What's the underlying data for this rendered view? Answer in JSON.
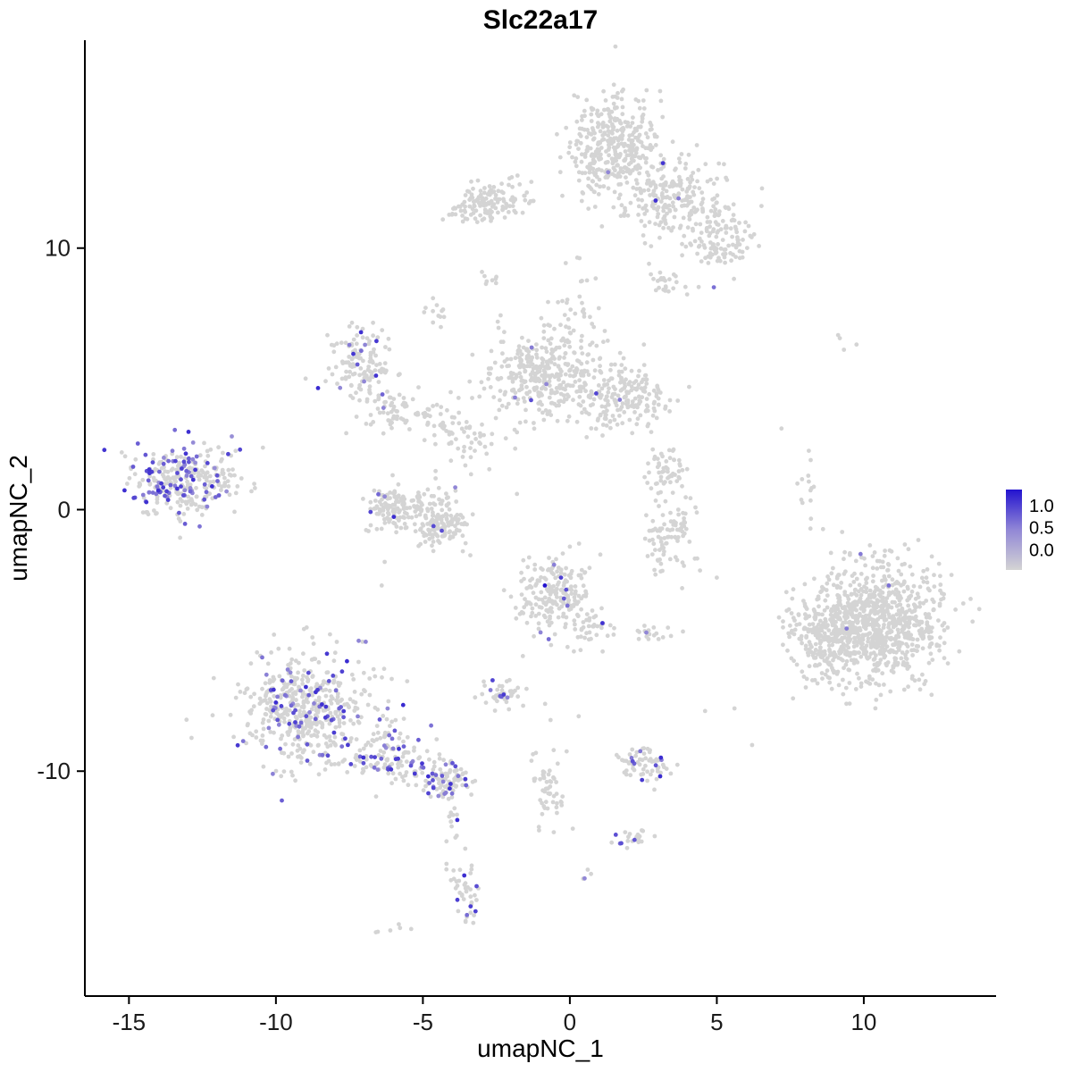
{
  "title": "Slc22a17",
  "axes": {
    "x_label": "umapNC_1",
    "y_label": "umapNC_2",
    "x_ticks": [
      -15,
      -10,
      -5,
      0,
      5,
      10
    ],
    "y_ticks": [
      -10,
      0,
      10
    ]
  },
  "legend": {
    "labels": [
      "1.0",
      "0.5",
      "0.0"
    ],
    "low_color": "#d4d4d4",
    "mid_color": "#9187d6",
    "high_color": "#2313cf"
  },
  "chart_data": {
    "type": "scatter",
    "title": "Slc22a17",
    "xlabel": "umapNC_1",
    "ylabel": "umapNC_2",
    "xlim": [
      -16.5,
      14.5
    ],
    "ylim": [
      -18.6,
      17.95
    ],
    "grid": false,
    "legend_position": "right",
    "color_scale": {
      "low": "#d4d4d4",
      "mid": "#9187d6",
      "high": "#2313cf",
      "domain": [
        0.0,
        0.5,
        1.0
      ]
    },
    "point_radius": 2.4,
    "seed": 42,
    "clusters": [
      {
        "cx": 1.5,
        "cy": 13.8,
        "sx": 0.8,
        "sy": 1.0,
        "n": 380,
        "frac": 0.004
      },
      {
        "cx": 3.6,
        "cy": 11.9,
        "sx": 0.85,
        "sy": 0.8,
        "n": 220,
        "frac": 0.008
      },
      {
        "cx": 5.2,
        "cy": 10.3,
        "sx": 0.6,
        "sy": 0.65,
        "n": 110,
        "frac": 0.01
      },
      {
        "cx": 3.3,
        "cy": 8.8,
        "sx": 0.35,
        "sy": 0.3,
        "n": 25,
        "frac": 0
      },
      {
        "cx": -2.6,
        "cy": 11.8,
        "sx": 0.55,
        "sy": 0.4,
        "n": 120,
        "frac": 0
      },
      {
        "cx": -3.7,
        "cy": 11.4,
        "sx": 0.3,
        "sy": 0.25,
        "n": 22,
        "frac": 0
      },
      {
        "cx": -2.9,
        "cy": 8.6,
        "sx": 0.18,
        "sy": 0.22,
        "n": 7,
        "frac": 0
      },
      {
        "cx": -4.6,
        "cy": 7.5,
        "sx": 0.25,
        "sy": 0.3,
        "n": 12,
        "frac": 0
      },
      {
        "cx": -7.3,
        "cy": 5.5,
        "sx": 0.55,
        "sy": 0.75,
        "n": 130,
        "frac": 0.05
      },
      {
        "cx": -6.2,
        "cy": 3.9,
        "sx": 0.55,
        "sy": 0.5,
        "n": 50,
        "frac": 0.03
      },
      {
        "cx": -4.7,
        "cy": 3.4,
        "sx": 0.6,
        "sy": 0.5,
        "n": 40,
        "frac": 0
      },
      {
        "cx": -3.4,
        "cy": 2.4,
        "sx": 0.65,
        "sy": 0.55,
        "n": 45,
        "frac": 0
      },
      {
        "cx": -0.7,
        "cy": 5.2,
        "sx": 0.95,
        "sy": 0.85,
        "n": 380,
        "frac": 0.005
      },
      {
        "cx": 1.9,
        "cy": 4.2,
        "sx": 0.8,
        "sy": 0.55,
        "n": 180,
        "frac": 0.006
      },
      {
        "cx": 0.4,
        "cy": 7.8,
        "sx": 0.45,
        "sy": 0.9,
        "n": 26,
        "frac": 0
      },
      {
        "cx": -13.4,
        "cy": 1.0,
        "sx": 0.75,
        "sy": 0.65,
        "n": 270,
        "frac": 0.32
      },
      {
        "cx": -12.0,
        "cy": 1.4,
        "sx": 0.6,
        "sy": 0.6,
        "n": 55,
        "frac": 0.06
      },
      {
        "cx": -5.9,
        "cy": 0.1,
        "sx": 0.5,
        "sy": 0.45,
        "n": 130,
        "frac": 0.02
      },
      {
        "cx": -4.5,
        "cy": -0.5,
        "sx": 0.55,
        "sy": 0.5,
        "n": 150,
        "frac": 0.015
      },
      {
        "cx": 3.3,
        "cy": 1.5,
        "sx": 0.35,
        "sy": 0.5,
        "n": 55,
        "frac": 0
      },
      {
        "cx": 3.4,
        "cy": -0.9,
        "sx": 0.45,
        "sy": 0.7,
        "n": 90,
        "frac": 0
      },
      {
        "cx": -0.6,
        "cy": -3.2,
        "sx": 0.65,
        "sy": 0.8,
        "n": 200,
        "frac": 0.05
      },
      {
        "cx": 0.9,
        "cy": -4.5,
        "sx": 0.5,
        "sy": 0.4,
        "n": 40,
        "frac": 0.02
      },
      {
        "cx": 2.9,
        "cy": -4.7,
        "sx": 0.35,
        "sy": 0.18,
        "n": 16,
        "frac": 0.07
      },
      {
        "cx": -8.8,
        "cy": -7.7,
        "sx": 1.15,
        "sy": 1.1,
        "n": 520,
        "frac": 0.13
      },
      {
        "cx": -6.0,
        "cy": -9.5,
        "sx": 0.7,
        "sy": 0.5,
        "n": 130,
        "frac": 0.18
      },
      {
        "cx": -4.2,
        "cy": -10.3,
        "sx": 0.45,
        "sy": 0.4,
        "n": 90,
        "frac": 0.3
      },
      {
        "cx": -3.9,
        "cy": -11.8,
        "sx": 0.22,
        "sy": 0.5,
        "n": 14,
        "frac": 0.05
      },
      {
        "cx": -2.3,
        "cy": -7.0,
        "sx": 0.4,
        "sy": 0.25,
        "n": 45,
        "frac": 0.1
      },
      {
        "cx": -0.8,
        "cy": -10.4,
        "sx": 0.25,
        "sy": 0.85,
        "n": 55,
        "frac": 0
      },
      {
        "cx": 10.4,
        "cy": -4.3,
        "sx": 1.2,
        "sy": 1.1,
        "n": 900,
        "frac": 0.0012
      },
      {
        "cx": 8.6,
        "cy": -4.9,
        "sx": 0.6,
        "sy": 0.85,
        "n": 160,
        "frac": 0
      },
      {
        "cx": 2.5,
        "cy": -9.7,
        "sx": 0.5,
        "sy": 0.3,
        "n": 65,
        "frac": 0.09
      },
      {
        "cx": 2.2,
        "cy": -12.5,
        "sx": 0.3,
        "sy": 0.2,
        "n": 22,
        "frac": 0.14
      },
      {
        "cx": -3.6,
        "cy": -14.5,
        "sx": 0.25,
        "sy": 0.75,
        "n": 45,
        "frac": 0.1
      },
      {
        "cx": -6.1,
        "cy": -16.1,
        "sx": 0.22,
        "sy": 0.15,
        "n": 6,
        "frac": 0
      },
      {
        "cx": 0.5,
        "cy": -14.0,
        "sx": 0.15,
        "sy": 0.15,
        "n": 3,
        "frac": 0
      },
      {
        "cx": 8.1,
        "cy": 0.6,
        "sx": 0.15,
        "sy": 1.0,
        "n": 14,
        "frac": 0
      },
      {
        "cx": 9.4,
        "cy": 6.6,
        "sx": 0.25,
        "sy": 0.18,
        "n": 4,
        "frac": 0
      }
    ],
    "singles": [
      [
        -2.5,
        8.9
      ],
      [
        7.2,
        3.1
      ],
      [
        5.6,
        -7.6
      ],
      [
        4.6,
        -7.7
      ],
      [
        0.3,
        -7.9
      ],
      [
        -1.6,
        -5.6
      ],
      [
        -6.3,
        -2.0
      ],
      [
        -6.4,
        -2.9
      ],
      [
        -1.8,
        0.6
      ],
      [
        5.0,
        -2.6
      ],
      [
        6.2,
        -9.0
      ],
      [
        0.1,
        -12.2
      ]
    ],
    "highlights": [
      [
        -0.85,
        -2.9,
        1.0
      ],
      [
        -0.3,
        -2.6,
        0.8
      ],
      [
        -0.2,
        -3.4,
        0.7
      ],
      [
        10.85,
        -2.9,
        0.6
      ],
      [
        1.3,
        12.9,
        0.5
      ],
      [
        3.7,
        11.9,
        0.55
      ],
      [
        4.9,
        8.5,
        0.6
      ],
      [
        -1.3,
        6.2,
        0.55
      ],
      [
        -0.8,
        4.8,
        0.5
      ],
      [
        1.7,
        4.2,
        0.55
      ],
      [
        -7.5,
        6.3,
        0.55
      ],
      [
        -7.0,
        4.9,
        0.5
      ],
      [
        -6.3,
        0.5,
        0.5
      ],
      [
        -3.9,
        0.85,
        0.5
      ],
      [
        -11.5,
        2.8,
        0.45
      ],
      [
        -2.7,
        -6.9,
        0.55
      ],
      [
        2.6,
        -4.7,
        0.5
      ],
      [
        0.5,
        -14.1,
        0.5
      ]
    ]
  }
}
